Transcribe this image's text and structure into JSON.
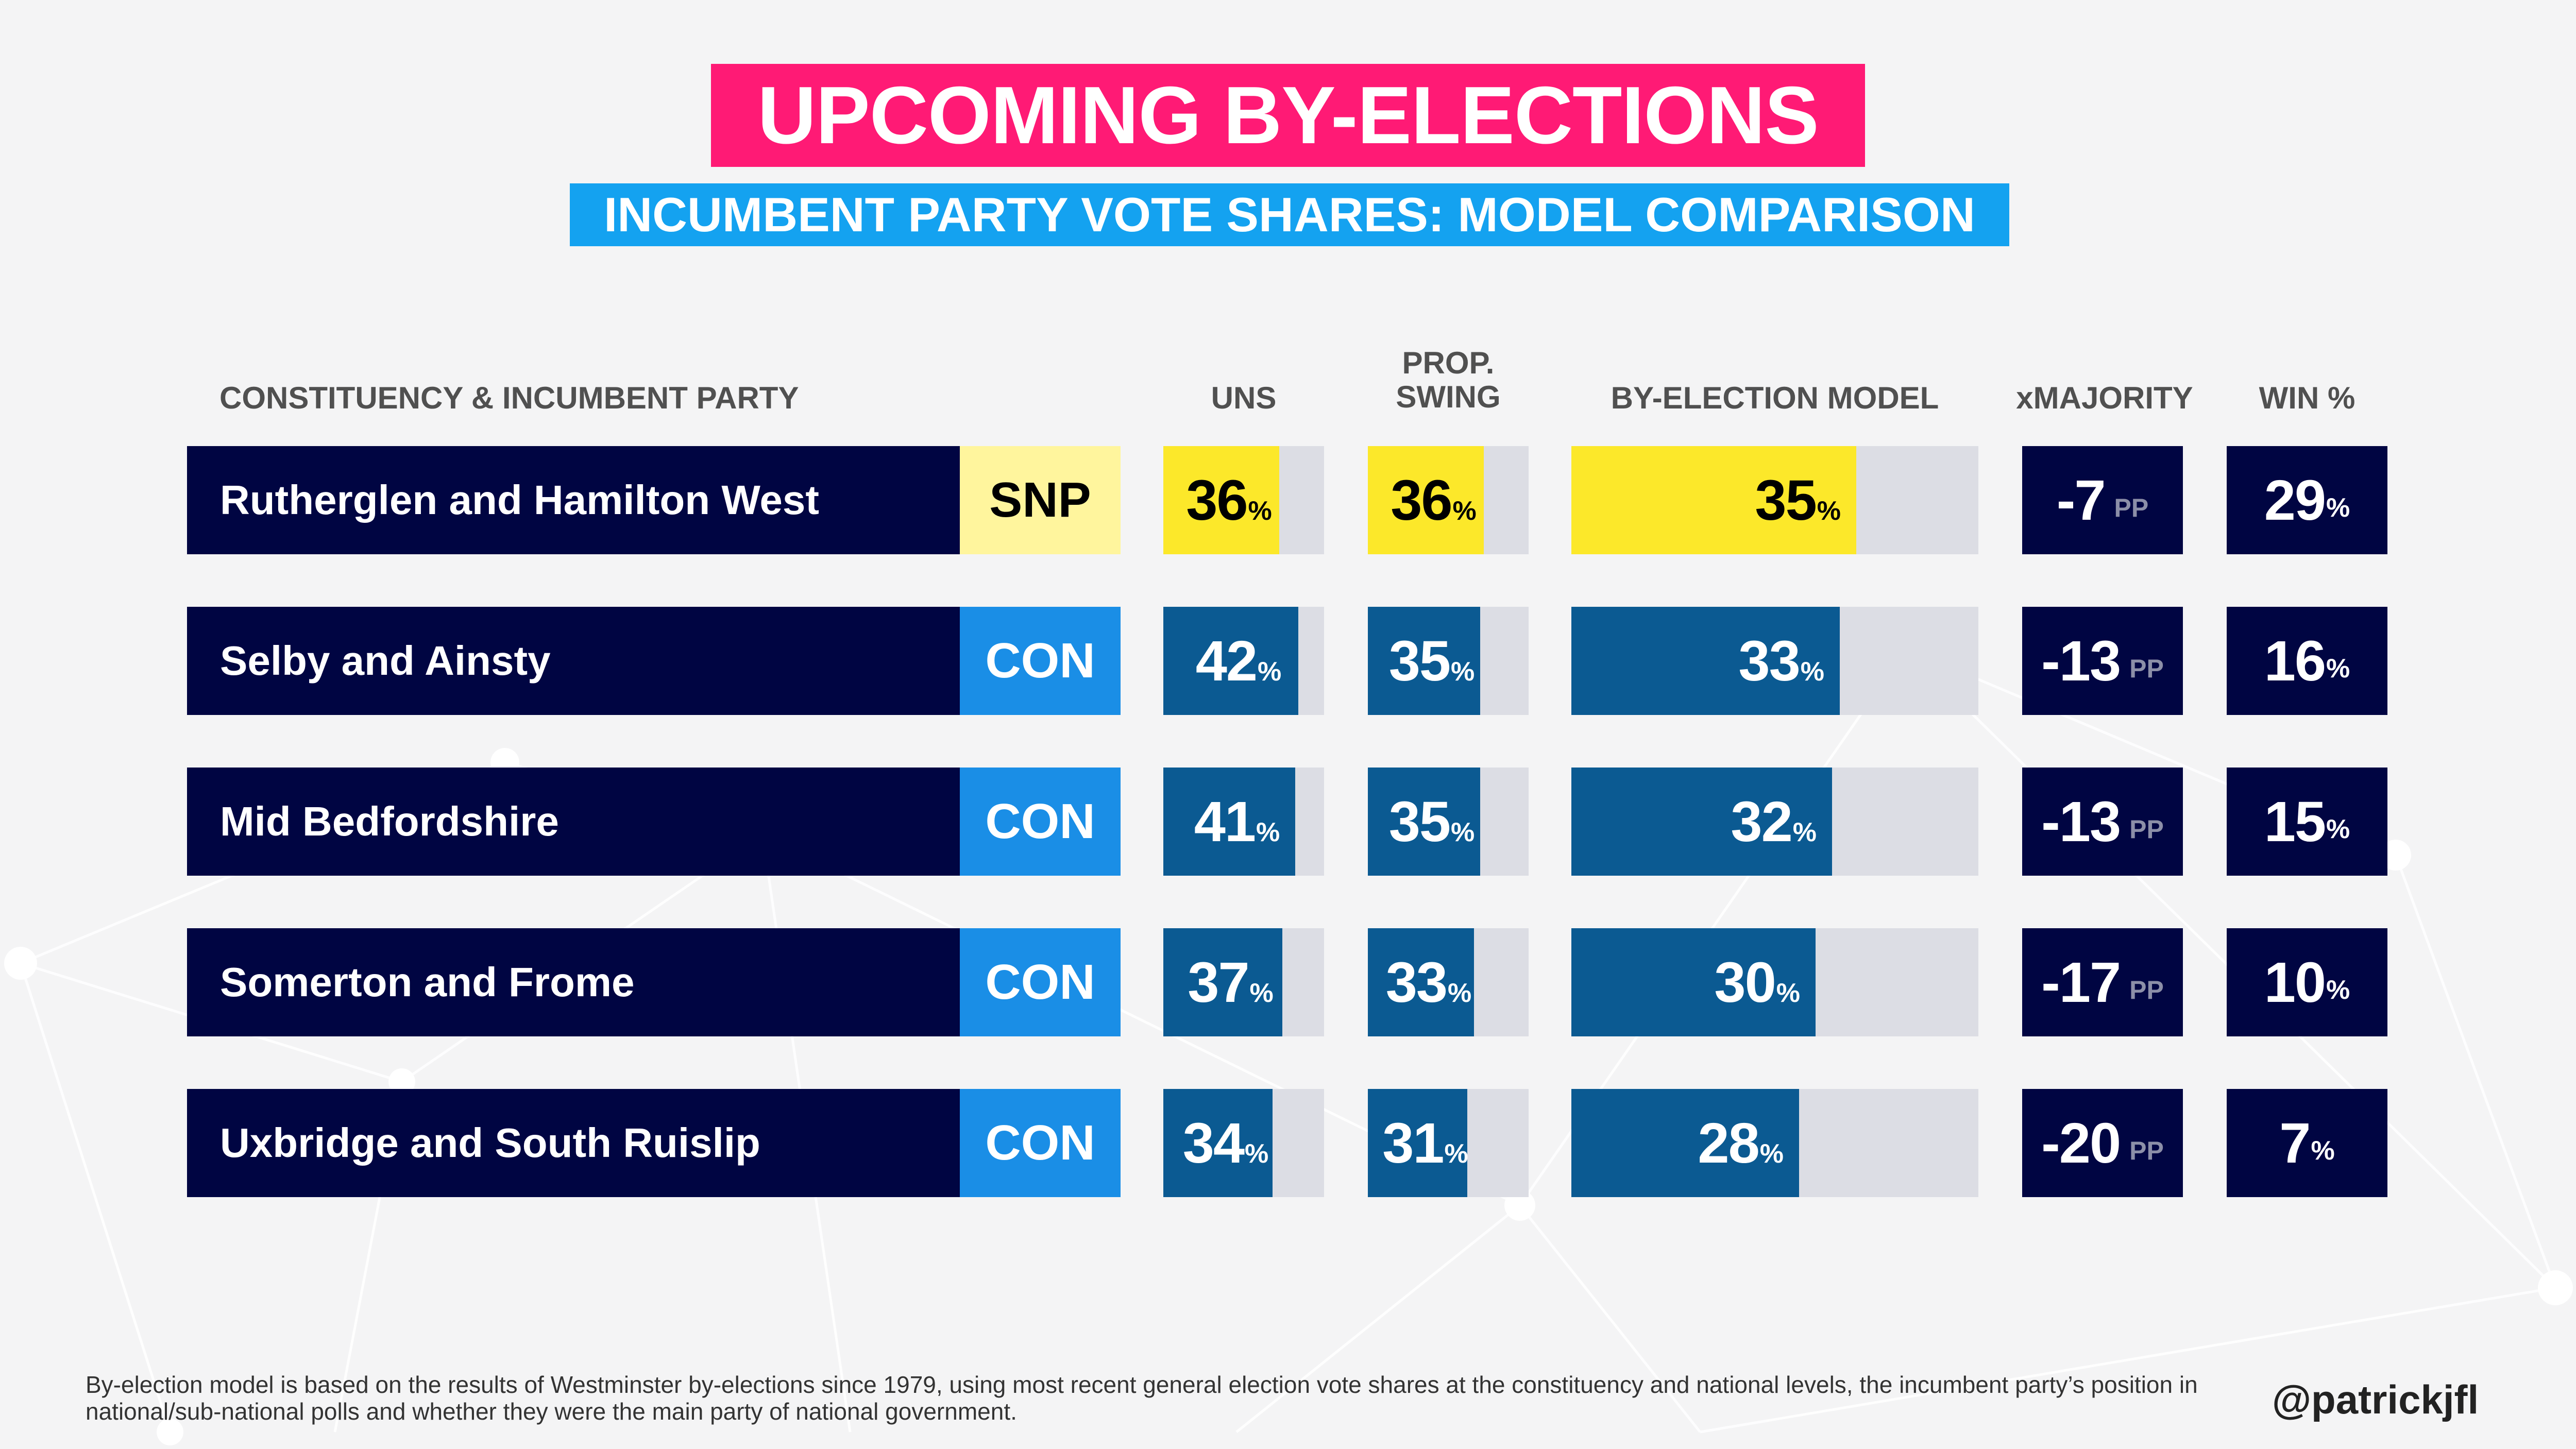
{
  "title": "UPCOMING BY-ELECTIONS",
  "subtitle": "INCUMBENT PARTY VOTE SHARES: MODEL COMPARISON",
  "headers": {
    "constituency": "CONSTITUENCY & INCUMBENT PARTY",
    "uns": "UNS",
    "prop_swing_1": "PROP.",
    "prop_swing_2": "SWING",
    "model": "BY-ELECTION MODEL",
    "xmajority": "xMAJORITY",
    "win": "WIN %"
  },
  "units": {
    "pct": "%",
    "pp": "PP"
  },
  "colors": {
    "navy": "#000542",
    "snp_fill": "#fce82a",
    "snp_party": "#fff59d",
    "con_fill": "#0b5a92",
    "con_party": "#1a8ee6",
    "track": "#dcdde4",
    "title_bg": "#ff1a75",
    "subtitle_bg": "#14a2f0"
  },
  "chart_data": {
    "type": "table",
    "columns": [
      "UNS",
      "PROP. SWING",
      "BY-ELECTION MODEL",
      "xMAJORITY",
      "WIN %"
    ],
    "rows": [
      {
        "constituency": "Rutherglen and Hamilton West",
        "party": "SNP",
        "uns": 36,
        "prop_swing": 36,
        "model": 35,
        "xmajority": -7,
        "win": 29
      },
      {
        "constituency": "Selby and Ainsty",
        "party": "CON",
        "uns": 42,
        "prop_swing": 35,
        "model": 33,
        "xmajority": -13,
        "win": 16
      },
      {
        "constituency": "Mid Bedfordshire",
        "party": "CON",
        "uns": 41,
        "prop_swing": 35,
        "model": 32,
        "xmajority": -13,
        "win": 15
      },
      {
        "constituency": "Somerton and Frome",
        "party": "CON",
        "uns": 37,
        "prop_swing": 33,
        "model": 30,
        "xmajority": -17,
        "win": 10
      },
      {
        "constituency": "Uxbridge and South Ruislip",
        "party": "CON",
        "uns": 34,
        "prop_swing": 31,
        "model": 28,
        "xmajority": -20,
        "win": 7
      }
    ],
    "bar_scale_max": 50
  },
  "footnote": "By-election model is based on the results of Westminster by-elections since 1979, using most recent general election vote shares at the constituency and national levels, the incumbent party’s position in national/sub-national polls and whether they were the main party of national government.",
  "handle": "@patrickjfl"
}
